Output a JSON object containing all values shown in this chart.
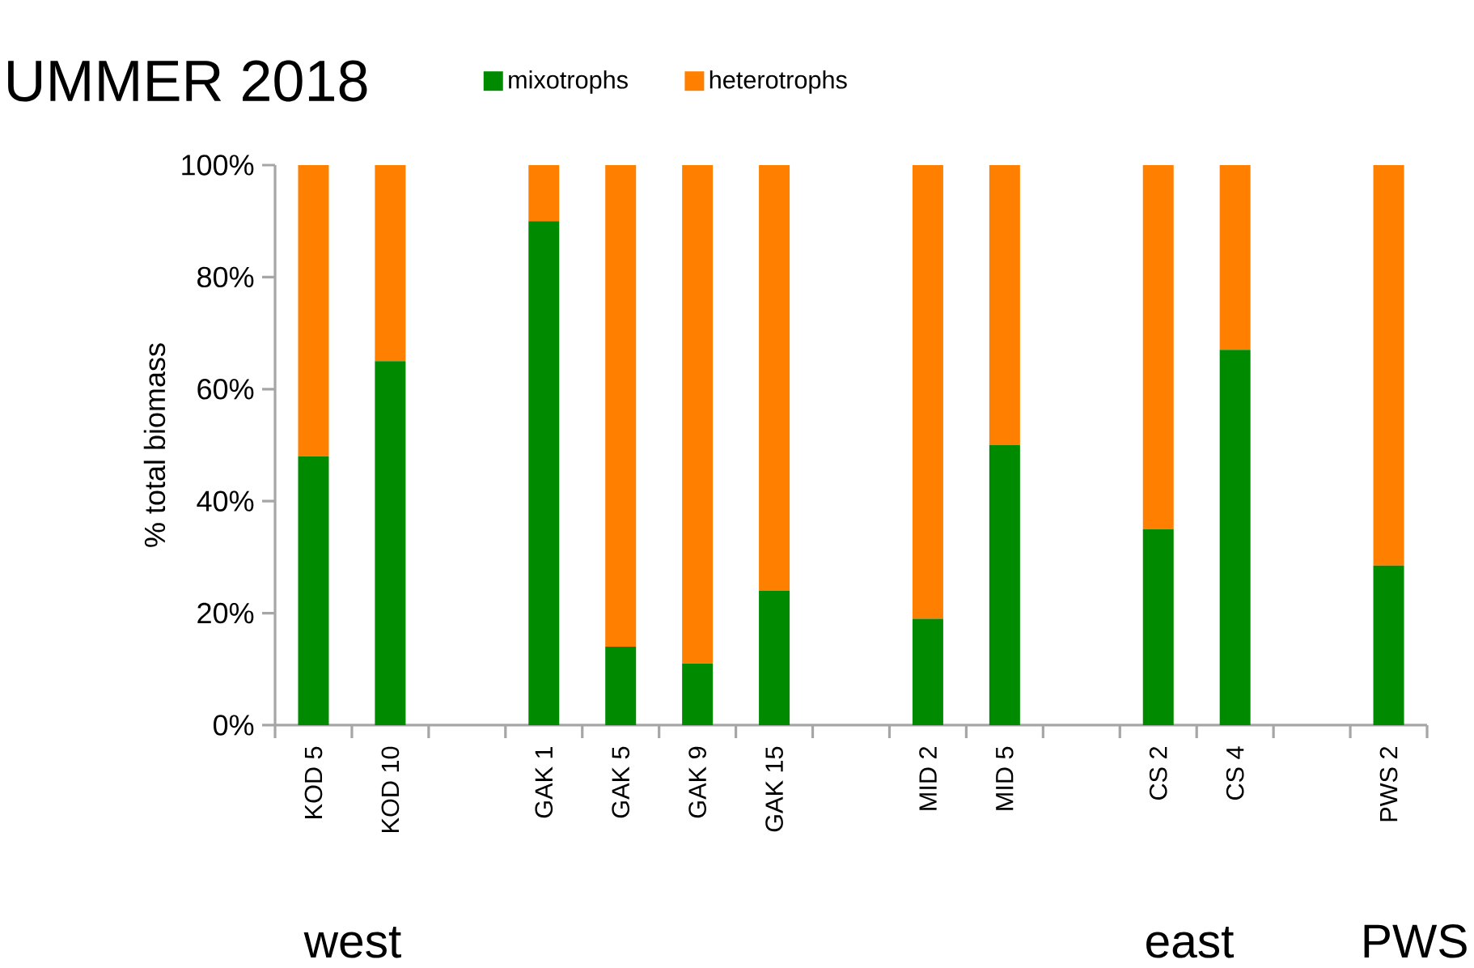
{
  "chart_data": {
    "type": "bar",
    "stacked": true,
    "title": "UMMER 2018",
    "ylabel": "% total biomass",
    "categories": [
      "KOD 5",
      "KOD 10",
      null,
      "GAK 1",
      "GAK 5",
      "GAK 9",
      "GAK 15",
      null,
      "MID 2",
      "MID 5",
      null,
      "CS 2",
      "CS 4",
      null,
      "PWS 2"
    ],
    "series": [
      {
        "name": "mixotrophs",
        "color": "#008a00",
        "values": [
          48,
          65,
          null,
          90,
          14,
          11,
          24,
          null,
          19,
          50,
          null,
          35,
          67,
          null,
          28.5
        ]
      },
      {
        "name": "heterotrophs",
        "color": "#ff7f00",
        "values": [
          52,
          35,
          null,
          10,
          86,
          89,
          76,
          null,
          81,
          50,
          null,
          65,
          33,
          null,
          71.5
        ]
      }
    ],
    "ylim": [
      0,
      100
    ],
    "yticks": [
      {
        "value": 0,
        "label": "0%"
      },
      {
        "value": 20,
        "label": "20%"
      },
      {
        "value": 40,
        "label": "40%"
      },
      {
        "value": 60,
        "label": "60%"
      },
      {
        "value": 80,
        "label": "80%"
      },
      {
        "value": 100,
        "label": "100%"
      }
    ],
    "legend": "top",
    "annotations": [
      "west",
      "east",
      "PWS"
    ]
  }
}
